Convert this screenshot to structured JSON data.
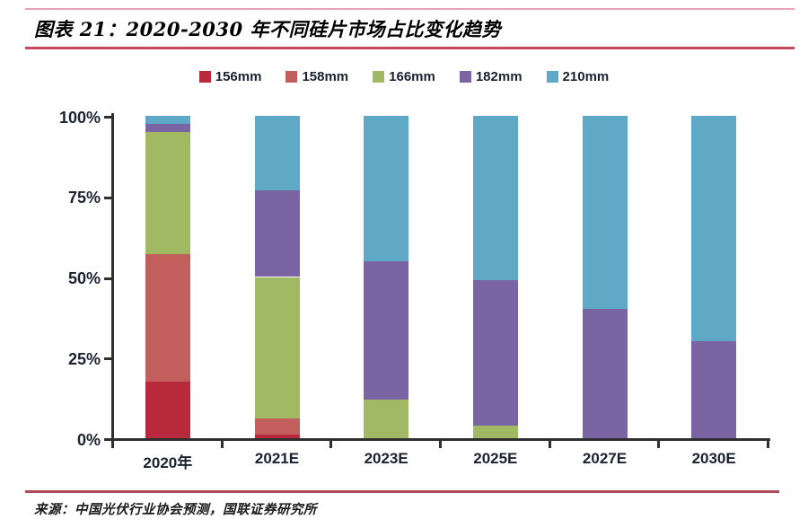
{
  "page": {
    "title": "图表 21：2020-2030 年不同硅片市场占比变化趋势",
    "source": "来源：中国光伏行业协会预测，国联证券研究所"
  },
  "colors": {
    "top_rule": "#E2A7B3",
    "title_rule": "#C44A5E",
    "source_rule": "#B04A58",
    "axis": "#2F2F2F",
    "label_text": "#1B2130"
  },
  "chart_data": {
    "type": "bar",
    "stacked": true,
    "title": "2020-2030 年不同硅片市场占比变化趋势",
    "categories": [
      "2020年",
      "2021E",
      "2023E",
      "2025E",
      "2027E",
      "2030E"
    ],
    "series": [
      {
        "name": "156mm",
        "color": "#B7293B",
        "values": [
          17.5,
          1,
          0,
          0,
          0,
          0
        ]
      },
      {
        "name": "158mm",
        "color": "#C25E5C",
        "values": [
          39.5,
          5,
          0,
          0,
          0,
          0
        ]
      },
      {
        "name": "166mm",
        "color": "#A2B964",
        "values": [
          38,
          44,
          12,
          4,
          0,
          0
        ]
      },
      {
        "name": "182mm",
        "color": "#7A64A4",
        "values": [
          2.5,
          27,
          43,
          45,
          40,
          30
        ]
      },
      {
        "name": "210mm",
        "color": "#5FA9C7",
        "values": [
          2.5,
          23,
          45,
          51,
          60,
          70
        ]
      }
    ],
    "ylim": [
      0,
      100
    ],
    "yticks": [
      0,
      25,
      50,
      75,
      100
    ],
    "ytick_labels": [
      "0%",
      "25%",
      "50%",
      "75%",
      "100%"
    ],
    "legend_position": "top",
    "grid": false
  }
}
